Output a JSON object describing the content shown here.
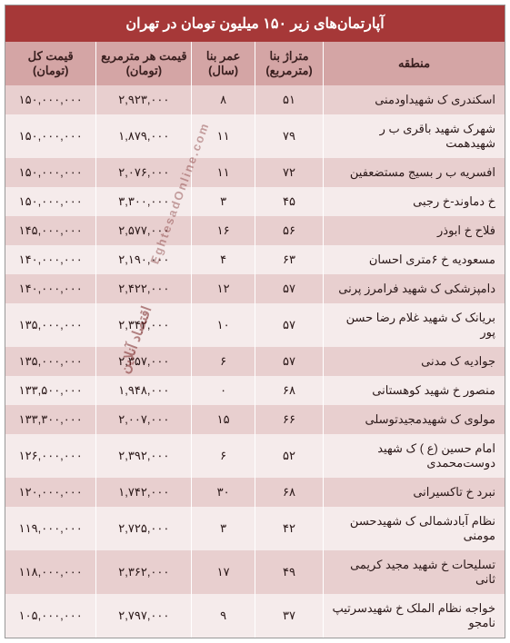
{
  "title": "آپارتمان‌های زیر ۱۵۰ میلیون تومان در تهران",
  "watermark1": "EghtesadOnline.com",
  "watermark2": "اقتصاد آنلاین",
  "colors": {
    "title_bg": "#a63838",
    "title_fg": "#ffffff",
    "header_bg": "#d4a5a5",
    "row_odd": "#e8cfcf",
    "row_even": "#f5ebeb"
  },
  "columns": [
    {
      "key": "region",
      "label": "منطقه"
    },
    {
      "key": "area",
      "label": "متراژ بنا (مترمربع)"
    },
    {
      "key": "age",
      "label": "عمر بنا (سال)"
    },
    {
      "key": "ppm",
      "label": "قیمت هر مترمربع (تومان)"
    },
    {
      "key": "total",
      "label": "قیمت کل (تومان)"
    }
  ],
  "rows": [
    {
      "region": "اسکندری ک شهیداودمنی",
      "area": "۵۱",
      "age": "۸",
      "ppm": "۲,۹۲۳,۰۰۰",
      "total": "۱۵۰,۰۰۰,۰۰۰"
    },
    {
      "region": "شهرک شهید باقری ب ر شهیدهمت",
      "area": "۷۹",
      "age": "۱۱",
      "ppm": "۱,۸۷۹,۰۰۰",
      "total": "۱۵۰,۰۰۰,۰۰۰"
    },
    {
      "region": "افسریه ب ر بسیج مستضعفین",
      "area": "۷۲",
      "age": "۱۱",
      "ppm": "۲,۰۷۶,۰۰۰",
      "total": "۱۵۰,۰۰۰,۰۰۰"
    },
    {
      "region": "خ دماوند-خ رجبی",
      "area": "۴۵",
      "age": "۳",
      "ppm": "۳,۳۰۰,۰۰۰",
      "total": "۱۵۰,۰۰۰,۰۰۰"
    },
    {
      "region": "فلاح خ ابوذر",
      "area": "۵۶",
      "age": "۱۶",
      "ppm": "۲,۵۷۷,۰۰۰",
      "total": "۱۴۵,۰۰۰,۰۰۰"
    },
    {
      "region": "مسعودیه خ ۶متری احسان",
      "area": "۶۳",
      "age": "۴",
      "ppm": "۲,۱۹۰,۰۰۰",
      "total": "۱۴۰,۰۰۰,۰۰۰"
    },
    {
      "region": "دامپزشکی ک شهید فرامرز پرنی",
      "area": "۵۷",
      "age": "۱۲",
      "ppm": "۲,۴۲۲,۰۰۰",
      "total": "۱۴۰,۰۰۰,۰۰۰"
    },
    {
      "region": "بریانک ک شهید غلام رضا حسن پور",
      "area": "۵۷",
      "age": "۱۰",
      "ppm": "۲,۳۴۲,۰۰۰",
      "total": "۱۳۵,۰۰۰,۰۰۰"
    },
    {
      "region": "جوادیه ک مدنی",
      "area": "۵۷",
      "age": "۶",
      "ppm": "۲,۳۵۷,۰۰۰",
      "total": "۱۳۵,۰۰۰,۰۰۰"
    },
    {
      "region": "منصور خ شهید کوهستانی",
      "area": "۶۸",
      "age": "۰",
      "ppm": "۱,۹۴۸,۰۰۰",
      "total": "۱۳۳,۵۰۰,۰۰۰"
    },
    {
      "region": "مولوی ک شهیدمجیدتوسلی",
      "area": "۶۶",
      "age": "۱۵",
      "ppm": "۲,۰۰۷,۰۰۰",
      "total": "۱۳۳,۳۰۰,۰۰۰"
    },
    {
      "region": "امام حسین (ع ) ک شهید دوست‌محمدی",
      "area": "۵۲",
      "age": "۶",
      "ppm": "۲,۳۹۲,۰۰۰",
      "total": "۱۲۶,۰۰۰,۰۰۰"
    },
    {
      "region": "نبرد خ تاکسیرانی",
      "area": "۶۸",
      "age": "۳۰",
      "ppm": "۱,۷۴۲,۰۰۰",
      "total": "۱۲۰,۰۰۰,۰۰۰"
    },
    {
      "region": "نظام آبادشمالی ک شهیدحسن مومنی",
      "area": "۴۲",
      "age": "۳",
      "ppm": "۲,۷۲۵,۰۰۰",
      "total": "۱۱۹,۰۰۰,۰۰۰"
    },
    {
      "region": "تسلیحات خ شهید مجید کریمی ثانی",
      "area": "۴۹",
      "age": "۱۷",
      "ppm": "۲,۳۶۲,۰۰۰",
      "total": "۱۱۸,۰۰۰,۰۰۰"
    },
    {
      "region": "خواجه نظام الملک خ شهیدسرتیپ نامجو",
      "area": "۳۷",
      "age": "۹",
      "ppm": "۲,۷۹۷,۰۰۰",
      "total": "۱۰۵,۰۰۰,۰۰۰"
    }
  ]
}
